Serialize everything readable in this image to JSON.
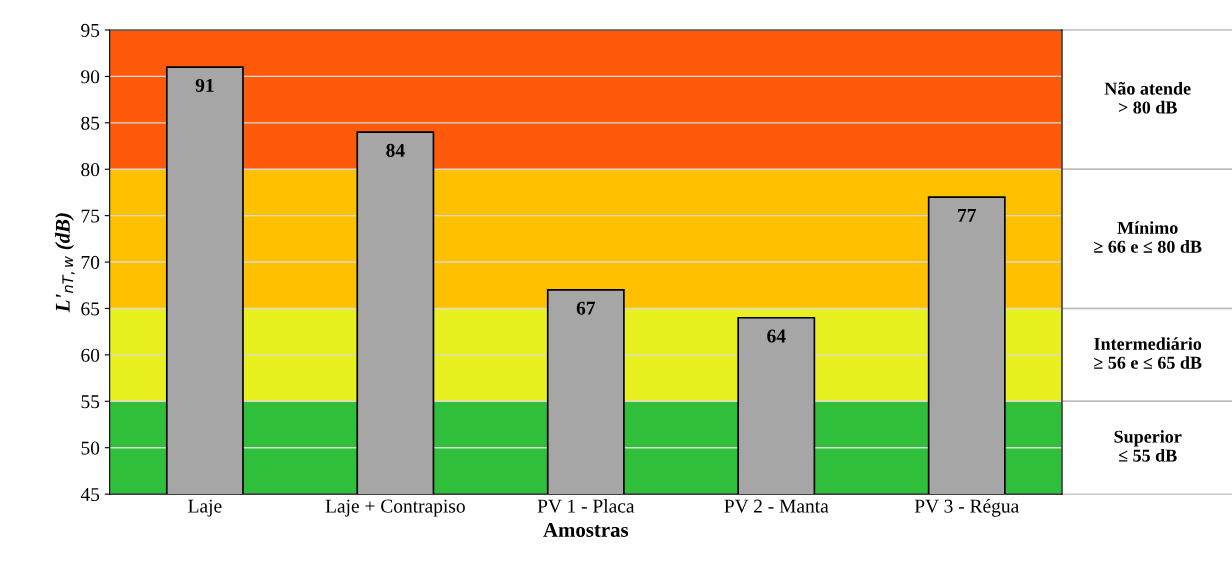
{
  "chart_data": {
    "type": "bar",
    "xlabel": "Amostras",
    "ylabel": "L'$_{nT,w}$ (dB)",
    "categories": [
      "Laje",
      "Laje + Contrapiso",
      "PV 1 - Placa",
      "PV 2 - Manta",
      "PV 3 - Régua"
    ],
    "values": [
      91,
      84,
      67,
      64,
      77
    ],
    "color": "#a6a6a6",
    "ylim": [
      45,
      95
    ],
    "yticks": [
      45,
      50,
      55,
      60,
      65,
      70,
      75,
      80,
      85,
      90,
      95
    ],
    "grid": "y",
    "data_labels": true,
    "bands": [
      {
        "axis": "y",
        "from": 45,
        "to": 55,
        "label": "Superior\n≤ 55 dB",
        "color": "#2fbf3a"
      },
      {
        "axis": "y",
        "from": 55,
        "to": 65,
        "label": "Intermediário\n≥ 56 e ≤ 65 dB",
        "color": "#e8f020"
      },
      {
        "axis": "y",
        "from": 65,
        "to": 80,
        "label": "Mínimo\n≥ 66 e ≤ 80 dB",
        "color": "#ffc000"
      },
      {
        "axis": "y",
        "from": 80,
        "to": 95,
        "label": "Não atende\n> 80 dB",
        "color": "#ff5a0a"
      }
    ]
  }
}
